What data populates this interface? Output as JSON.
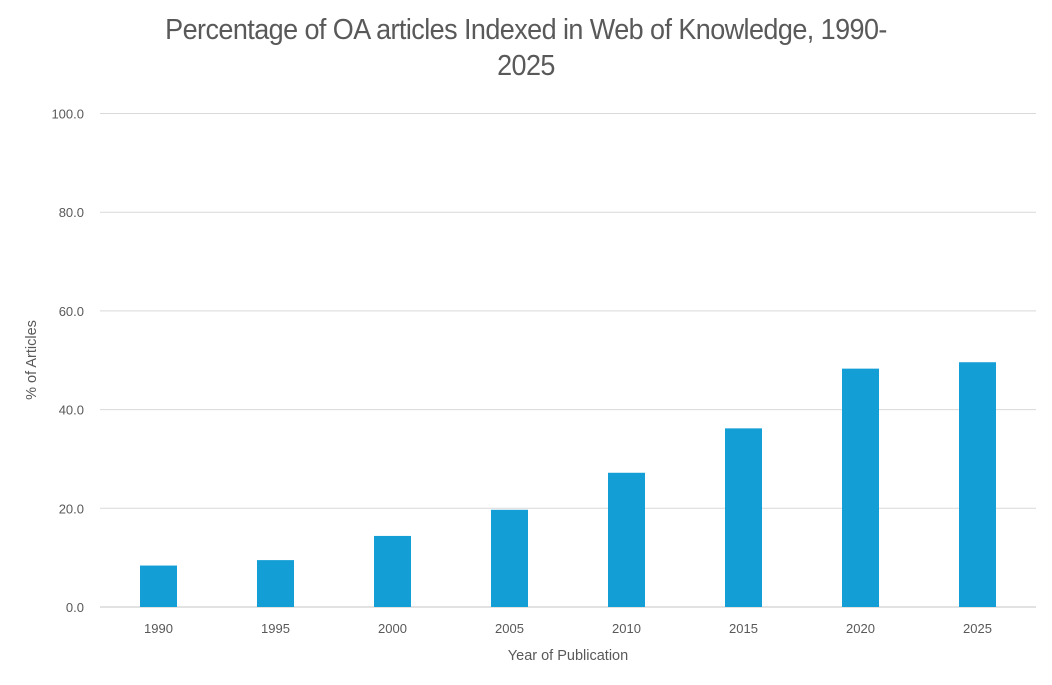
{
  "chart_data": {
    "type": "bar",
    "title": "Percentage of OA articles Indexed in Web of Knowledge, 1990-2025",
    "title_lines": [
      "Percentage of OA articles Indexed in Web of Knowledge, 1990-",
      "2025"
    ],
    "xlabel": "Year of Publication",
    "ylabel": "% of Articles",
    "categories": [
      "1990",
      "1995",
      "2000",
      "2005",
      "2010",
      "2015",
      "2020",
      "2025"
    ],
    "values": [
      8.4,
      9.5,
      14.4,
      19.7,
      27.2,
      36.2,
      48.3,
      49.6
    ],
    "ylim": [
      0,
      100
    ],
    "yticks": [
      0,
      20,
      40,
      60,
      80,
      100
    ],
    "ytick_labels": [
      "0.0",
      "20.0",
      "40.0",
      "60.0",
      "80.0",
      "100.0"
    ],
    "grid": true,
    "legend": "none",
    "colors": {
      "bar": "#139FD6",
      "grid": "#D9D9D9",
      "text": "#595959"
    }
  }
}
